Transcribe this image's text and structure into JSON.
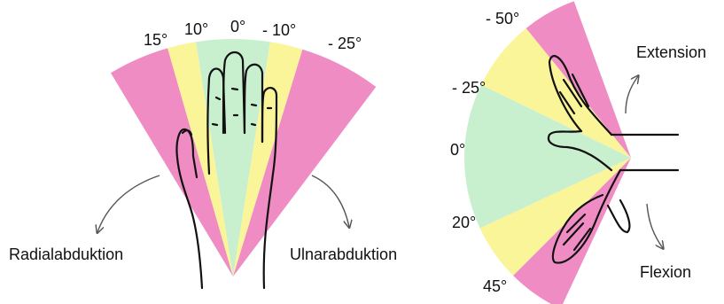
{
  "left_diagram": {
    "angle_labels": [
      "15°",
      "10°",
      "0°",
      "- 10°",
      "- 25°"
    ],
    "motion_labels": [
      "Radialabduktion",
      "Ulnarabduktion"
    ]
  },
  "right_diagram": {
    "angle_labels": [
      "- 50°",
      "- 25°",
      "0°",
      "20°",
      "45°"
    ],
    "motion_labels": [
      "Extension",
      "Flexion"
    ]
  }
}
